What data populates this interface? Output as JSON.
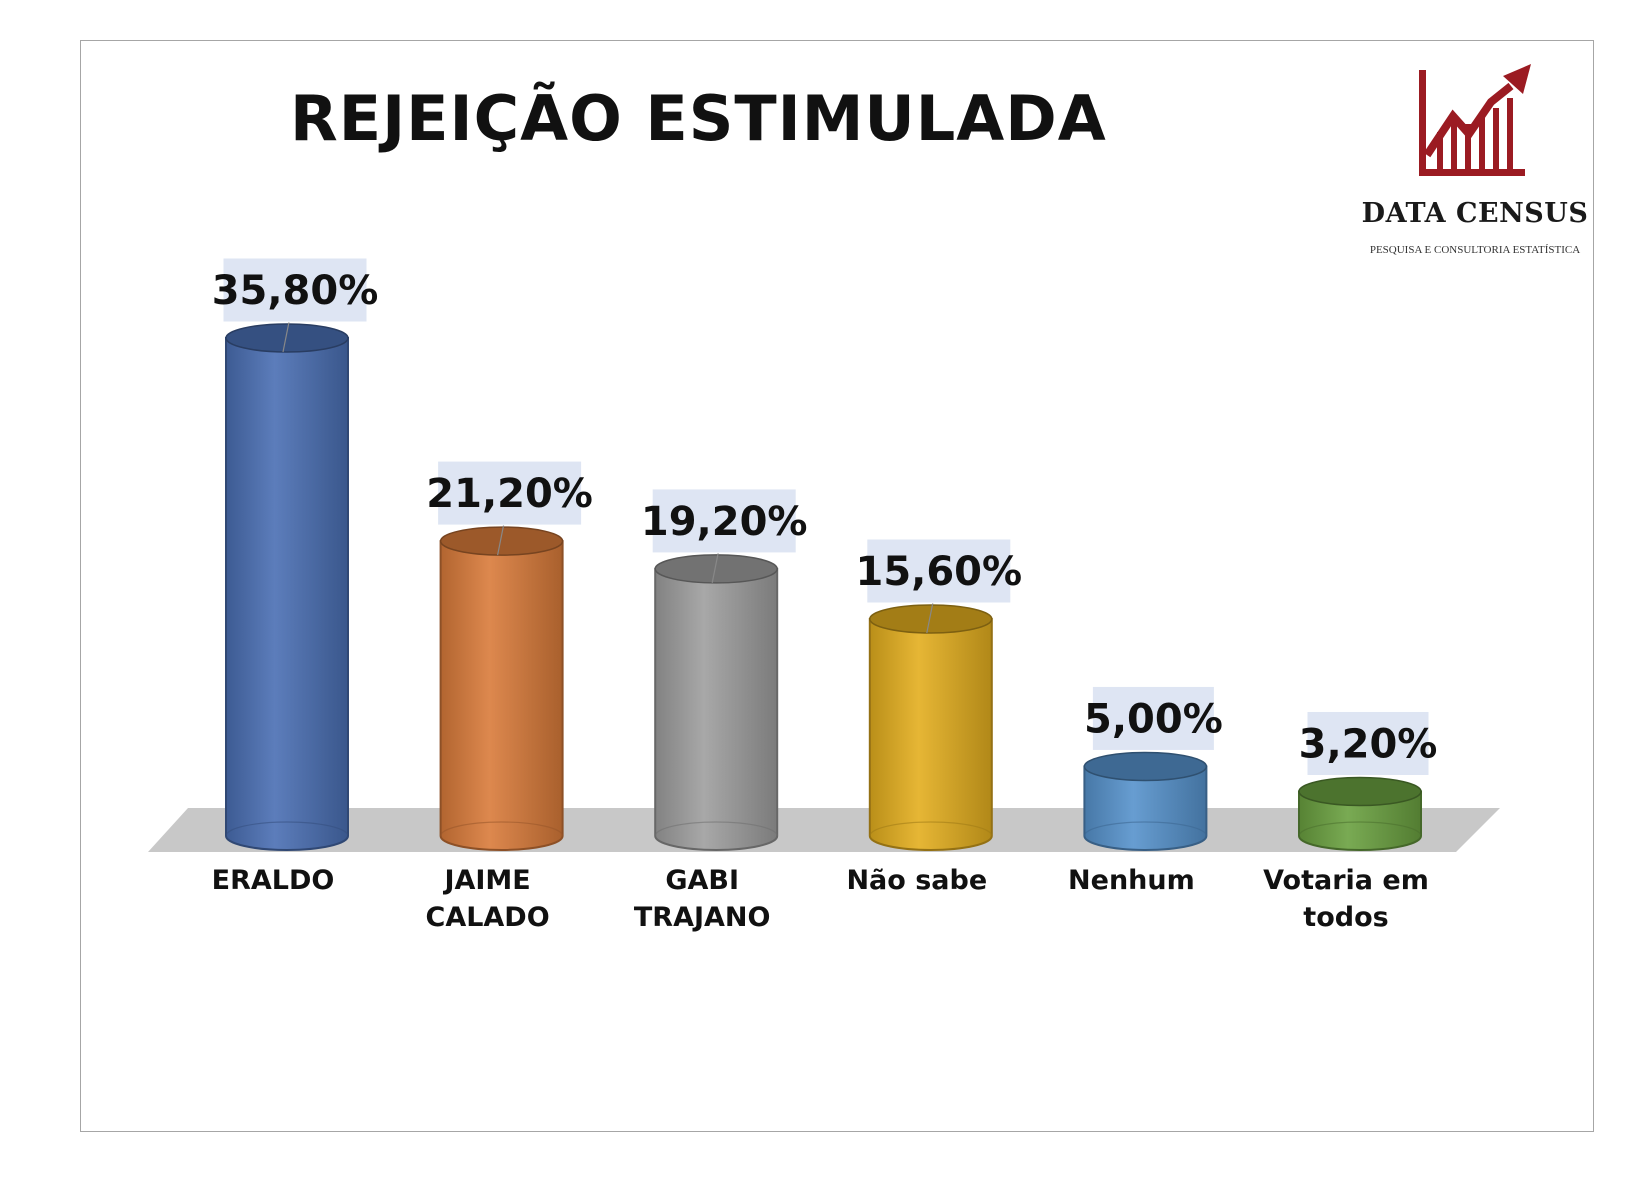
{
  "chart_data": {
    "type": "bar",
    "title": "REJEIÇÃO ESTIMULADA",
    "categories": [
      "ERALDO",
      "JAIME CALADO",
      "GABI TRAJANO",
      "Não sabe",
      "Nenhum",
      "Votaria em todos"
    ],
    "category_lines": [
      [
        "ERALDO"
      ],
      [
        "JAIME",
        "CALADO"
      ],
      [
        "GABI",
        "TRAJANO"
      ],
      [
        "Não sabe"
      ],
      [
        "Nenhum"
      ],
      [
        "Votaria em",
        "todos"
      ]
    ],
    "values": [
      35.8,
      21.2,
      19.2,
      15.6,
      5.0,
      3.2
    ],
    "value_labels": [
      "35,80%",
      "21,20%",
      "19,20%",
      "15,60%",
      "5,00%",
      "3,20%"
    ],
    "colors": [
      "#4a6fb3",
      "#d97b3a",
      "#9e9e9e",
      "#e3ae1f",
      "#5692cc",
      "#6aa040"
    ],
    "unit": "%",
    "ylim": [
      0,
      35.8
    ],
    "style": "3d-cylinder",
    "grid": false,
    "legend": "none"
  },
  "brand": {
    "name": "DATA CENSUS",
    "tagline": "PESQUISA E CONSULTORIA ESTATÍSTICA",
    "color": "#9b1b22"
  }
}
